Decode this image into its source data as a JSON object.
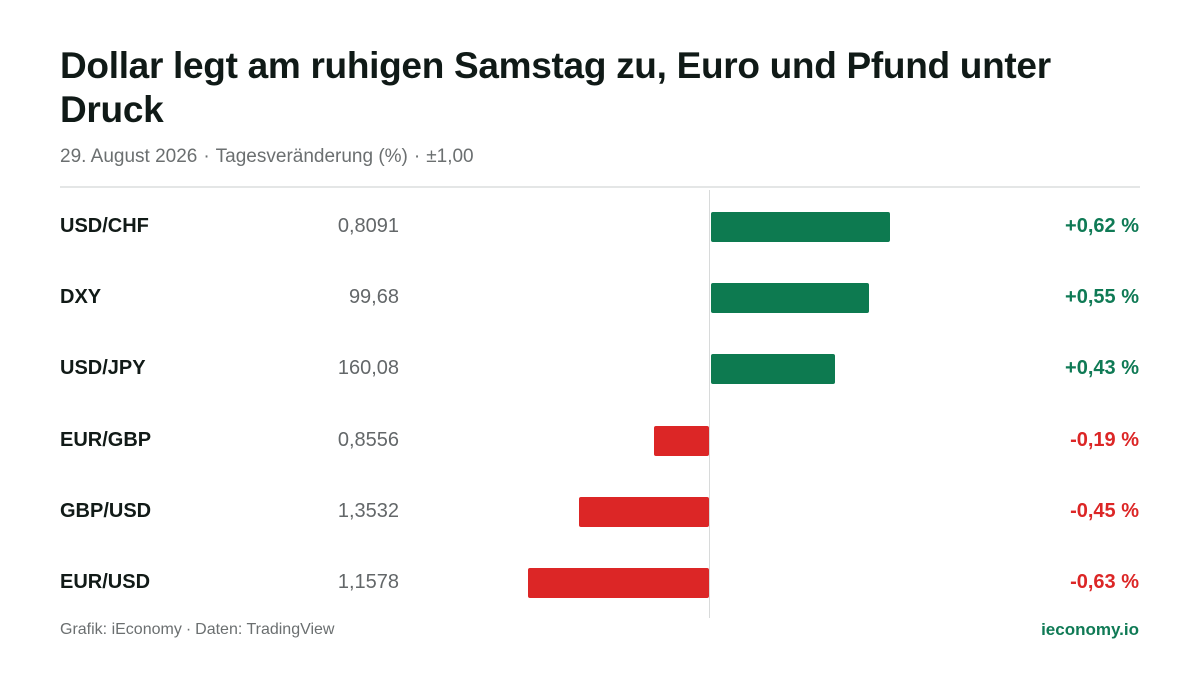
{
  "header": {
    "title": "Dollar legt am ruhigen Samstag zu, Euro und Pfund unter Druck",
    "date": "29. August 2026",
    "metric": "Tagesveränderung (%)",
    "scale": "±1,00",
    "separator": "·"
  },
  "colors": {
    "positive": "#0d7a50",
    "negative": "#dc2626",
    "positive_text": "#0f7a55",
    "negative_text": "#dc2626"
  },
  "chart_data": {
    "type": "bar",
    "orientation": "horizontal",
    "categories": [
      "USD/CHF",
      "DXY",
      "USD/JPY",
      "EUR/GBP",
      "GBP/USD",
      "EUR/USD"
    ],
    "rates": [
      "0,8091",
      "99,68",
      "160,08",
      "0,8556",
      "1,3532",
      "1,1578"
    ],
    "values": [
      0.62,
      0.55,
      0.43,
      -0.19,
      -0.45,
      -0.63
    ],
    "value_labels": [
      "+0,62 %",
      "+0,55 %",
      "+0,43 %",
      "-0,19 %",
      "-0,45 %",
      "-0,63 %"
    ],
    "xlim": [
      -1.0,
      1.0
    ],
    "title": "Dollar legt am ruhigen Samstag zu, Euro und Pfund unter Druck",
    "xlabel": "Tagesveränderung (%)",
    "ylabel": "",
    "grid": false,
    "legend": "none"
  },
  "footer": {
    "source_prefix": "Grafik: iEconomy",
    "separator": "·",
    "source_data": "Daten: TradingView",
    "brand": "ieconomy.io"
  }
}
